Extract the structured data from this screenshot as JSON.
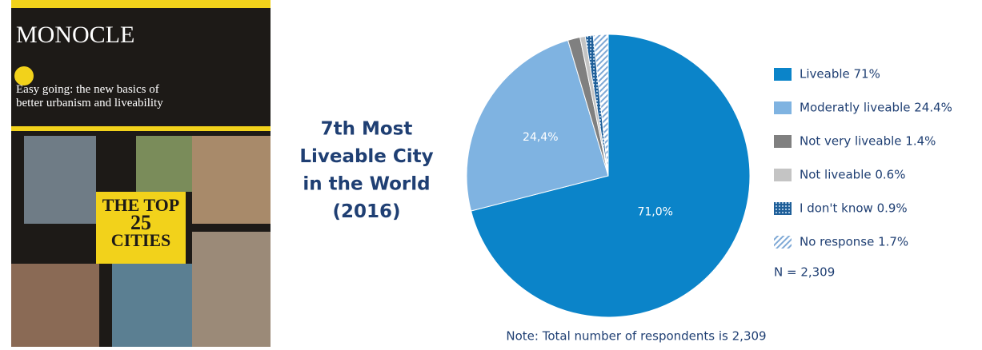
{
  "cover": {
    "masthead": "MONOCLE",
    "headline": "Easy going: the new basics of better urbanism and liveability",
    "feature_top": "THE TOP",
    "feature_number": "25",
    "feature_bottom": "CITIES"
  },
  "chart_data": {
    "type": "pie",
    "title": [
      "7th Most",
      "Liveable City",
      "in the World",
      "(2016)"
    ],
    "categories": [
      "Liveable 71%",
      "Moderatly liveable 24.4%",
      "Not very liveable 1.4%",
      "Not liveable 0.6%",
      "I don't know 0.9%",
      "No response 1.7%"
    ],
    "values": [
      71.0,
      24.4,
      1.4,
      0.6,
      0.9,
      1.7
    ],
    "value_labels": [
      "71,0%",
      "24,4%",
      null,
      null,
      null,
      null
    ],
    "colors": [
      "#0b84c9",
      "#7fb3e1",
      "#808080",
      "#c4c4c4",
      "#2f6fa8",
      "#9cc3e6"
    ],
    "patterns": [
      null,
      null,
      null,
      null,
      "dots",
      "hatch"
    ],
    "annotations": [
      "N = 2,309",
      "Note: Total number of respondents is 2,309"
    ]
  }
}
